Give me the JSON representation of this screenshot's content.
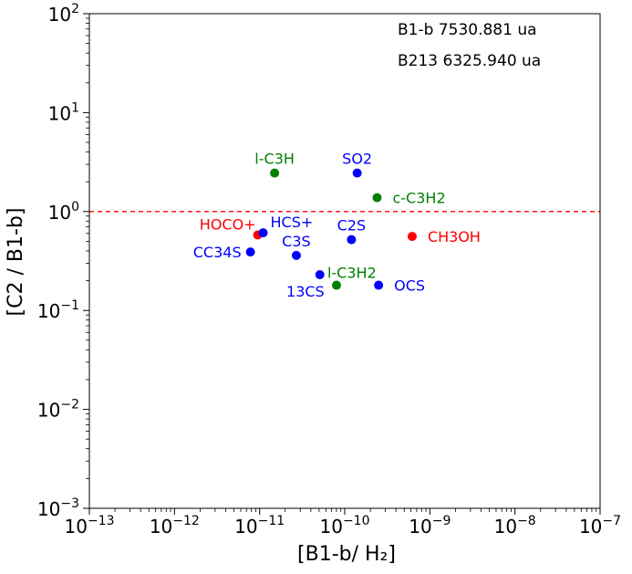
{
  "chart_data": {
    "type": "scatter",
    "title": "",
    "xlabel": "[B1-b/ H₂]",
    "ylabel": "[C2 / B1-b]",
    "xscale": "log",
    "yscale": "log",
    "xlim": [
      1e-13,
      1e-07
    ],
    "ylim": [
      0.001,
      100
    ],
    "x_ticks": [
      {
        "base": "10",
        "exp": "−13",
        "value": 1e-13
      },
      {
        "base": "10",
        "exp": "−12",
        "value": 1e-12
      },
      {
        "base": "10",
        "exp": "−11",
        "value": 1e-11
      },
      {
        "base": "10",
        "exp": "−10",
        "value": 1e-10
      },
      {
        "base": "10",
        "exp": "−9",
        "value": 1e-09
      },
      {
        "base": "10",
        "exp": "−8",
        "value": 1e-08
      },
      {
        "base": "10",
        "exp": "−7",
        "value": 1e-07
      }
    ],
    "y_ticks": [
      {
        "base": "10",
        "exp": "−3",
        "value": 0.001
      },
      {
        "base": "10",
        "exp": "−2",
        "value": 0.01
      },
      {
        "base": "10",
        "exp": "−1",
        "value": 0.1
      },
      {
        "base": "10",
        "exp": "0",
        "value": 1
      },
      {
        "base": "10",
        "exp": "1",
        "value": 10
      },
      {
        "base": "10",
        "exp": "2",
        "value": 100
      }
    ],
    "reference_line": {
      "y": 1,
      "color": "#ff0000",
      "style": "dashed"
    },
    "annotations": [
      "B1-b 7530.881 ua",
      "B213 6325.940 ua"
    ],
    "colors": {
      "blue": "#0000ff",
      "green": "#008000",
      "red": "#ff0000"
    },
    "points": [
      {
        "name": "l-C3H",
        "x": 1.5e-11,
        "y": 2.45,
        "color": "green",
        "label_pos": "above"
      },
      {
        "name": "SO2",
        "x": 1.4e-10,
        "y": 2.45,
        "color": "blue",
        "label_pos": "above"
      },
      {
        "name": "c-C3H2",
        "x": 2.4e-10,
        "y": 1.38,
        "color": "green",
        "label_pos": "right"
      },
      {
        "name": "HOCO+",
        "x": 9.5e-12,
        "y": 0.58,
        "color": "red",
        "label_pos": "left-up"
      },
      {
        "name": "HCS+",
        "x": 1.1e-11,
        "y": 0.61,
        "color": "blue",
        "label_pos": "right-up"
      },
      {
        "name": "C2S",
        "x": 1.2e-10,
        "y": 0.52,
        "color": "blue",
        "label_pos": "above"
      },
      {
        "name": "CH3OH",
        "x": 6.2e-10,
        "y": 0.56,
        "color": "red",
        "label_pos": "right"
      },
      {
        "name": "CC34S",
        "x": 7.8e-12,
        "y": 0.39,
        "color": "blue",
        "label_pos": "left"
      },
      {
        "name": "C3S",
        "x": 2.7e-11,
        "y": 0.36,
        "color": "blue",
        "label_pos": "above"
      },
      {
        "name": "l-C3H2",
        "x": 8e-11,
        "y": 0.18,
        "color": "green",
        "label_pos": "above-right"
      },
      {
        "name": "13CS",
        "x": 5.1e-11,
        "y": 0.23,
        "color": "blue",
        "label_pos": "below-left"
      },
      {
        "name": "OCS",
        "x": 2.5e-10,
        "y": 0.18,
        "color": "blue",
        "label_pos": "right"
      }
    ]
  }
}
